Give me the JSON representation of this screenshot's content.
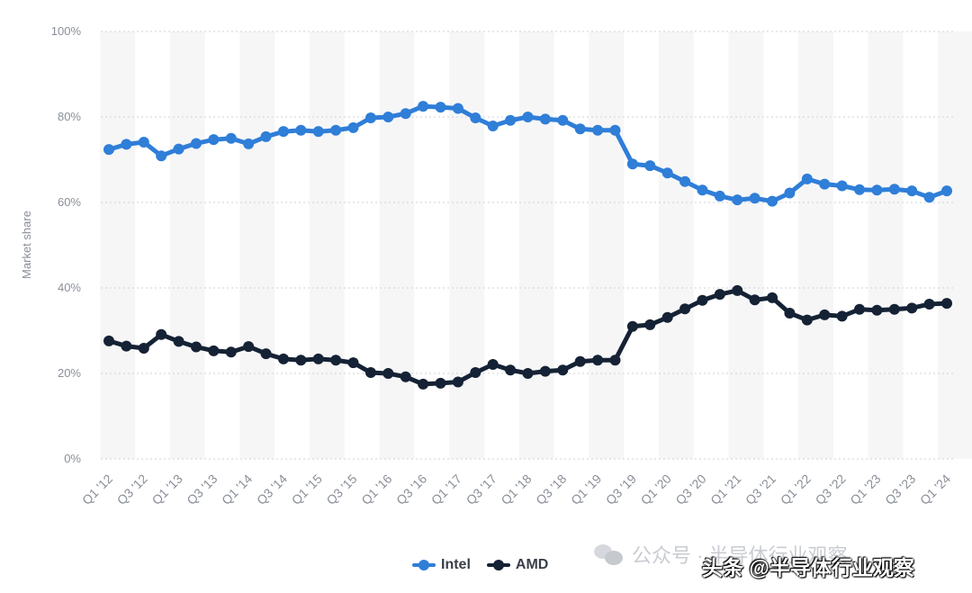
{
  "chart_data": {
    "type": "line",
    "ylabel": "Market share",
    "xlabel": "",
    "ylim": [
      0,
      100
    ],
    "y_ticks": [
      "0%",
      "20%",
      "40%",
      "60%",
      "80%",
      "100%"
    ],
    "y_tick_values": [
      0,
      20,
      40,
      60,
      80,
      100
    ],
    "grid": true,
    "legend_position": "bottom-center",
    "x": [
      "Q1 '12",
      "Q2 '12",
      "Q3 '12",
      "Q4 '12",
      "Q1 '13",
      "Q2 '13",
      "Q3 '13",
      "Q4 '13",
      "Q1 '14",
      "Q2 '14",
      "Q3 '14",
      "Q4 '14",
      "Q1 '15",
      "Q2 '15",
      "Q3 '15",
      "Q4 '15",
      "Q1 '16",
      "Q2 '16",
      "Q3 '16",
      "Q4 '16",
      "Q1 '17",
      "Q2 '17",
      "Q3 '17",
      "Q4 '17",
      "Q1 '18",
      "Q2 '18",
      "Q3 '18",
      "Q4 '18",
      "Q1 '19",
      "Q2 '19",
      "Q3 '19",
      "Q4 '19",
      "Q1 '20",
      "Q2 '20",
      "Q3 '20",
      "Q4 '20",
      "Q1 '21",
      "Q2 '21",
      "Q3 '21",
      "Q4 '21",
      "Q1 '22",
      "Q2 '22",
      "Q3 '22",
      "Q4 '22",
      "Q1 '23",
      "Q2 '23",
      "Q3 '23",
      "Q4 '23",
      "Q1 '24"
    ],
    "x_tick_labels": [
      "Q1 '12",
      "Q3 '12",
      "Q1 '13",
      "Q3 '13",
      "Q1 '14",
      "Q3 '14",
      "Q1 '15",
      "Q3 '15",
      "Q1 '16",
      "Q3 '16",
      "Q1 '17",
      "Q3 '17",
      "Q1 '18",
      "Q3 '18",
      "Q1 '19",
      "Q3 '19",
      "Q1 '20",
      "Q3 '20",
      "Q1 '21",
      "Q3 '21",
      "Q1 '22",
      "Q3 '22",
      "Q1 '23",
      "Q3 '23",
      "Q1 '24"
    ],
    "series": [
      {
        "name": "Intel",
        "color": "#2f7ed8",
        "values": [
          72.4,
          73.6,
          74.1,
          70.9,
          72.5,
          73.8,
          74.7,
          75.0,
          73.7,
          75.4,
          76.6,
          76.9,
          76.6,
          76.9,
          77.5,
          79.8,
          80.0,
          80.8,
          82.5,
          82.3,
          82.0,
          79.8,
          77.9,
          79.2,
          80.0,
          79.5,
          79.2,
          77.2,
          76.9,
          76.9,
          69.0,
          68.6,
          66.9,
          64.9,
          62.9,
          61.5,
          60.6,
          61.0,
          60.3,
          62.2,
          65.5,
          64.3,
          63.9,
          63.0,
          62.9,
          63.1,
          62.7,
          61.2,
          62.7
        ]
      },
      {
        "name": "AMD",
        "color": "#152235",
        "values": [
          27.6,
          26.4,
          25.9,
          29.1,
          27.5,
          26.2,
          25.3,
          25.0,
          26.3,
          24.6,
          23.4,
          23.1,
          23.4,
          23.1,
          22.5,
          20.2,
          20.0,
          19.2,
          17.5,
          17.7,
          18.0,
          20.2,
          22.1,
          20.8,
          20.0,
          20.5,
          20.8,
          22.8,
          23.1,
          23.1,
          31.0,
          31.4,
          33.1,
          35.1,
          37.1,
          38.5,
          39.4,
          37.2,
          37.7,
          34.1,
          32.5,
          33.7,
          33.4,
          35.0,
          34.8,
          35.0,
          35.3,
          36.2,
          36.4
        ]
      }
    ]
  },
  "legend": {
    "intel": "Intel",
    "amd": "AMD"
  },
  "watermark": {
    "text": "公众号 · 半导体行业观察"
  },
  "source_tag": "头条 @半导体行业观察"
}
